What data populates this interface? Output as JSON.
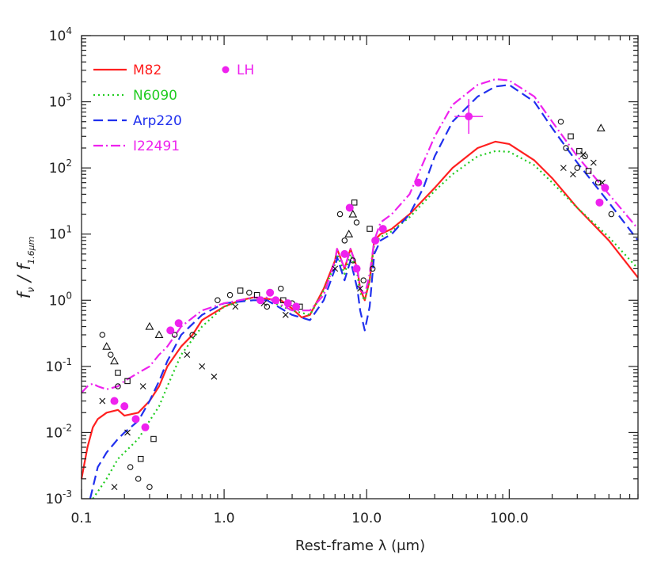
{
  "chart_data": {
    "type": "line",
    "title": "",
    "xlabel": "Rest-frame λ (μm)",
    "ylabel": "f_ν / f_1.6μm",
    "xscale": "log",
    "yscale": "log",
    "xlim": [
      0.1,
      800
    ],
    "ylim": [
      0.001,
      10000
    ],
    "x_ticks": [
      {
        "value": 0.1,
        "label": "0.1"
      },
      {
        "value": 1.0,
        "label": "1.0"
      },
      {
        "value": 10.0,
        "label": "10.0"
      },
      {
        "value": 100.0,
        "label": "100.0"
      }
    ],
    "y_ticks": [
      {
        "value": 0.001,
        "base": "10",
        "exp": "-3"
      },
      {
        "value": 0.01,
        "base": "10",
        "exp": "-2"
      },
      {
        "value": 0.1,
        "base": "10",
        "exp": "-1"
      },
      {
        "value": 1,
        "base": "10",
        "exp": "0"
      },
      {
        "value": 10,
        "base": "10",
        "exp": "1"
      },
      {
        "value": 100,
        "base": "10",
        "exp": "2"
      },
      {
        "value": 1000,
        "base": "10",
        "exp": "3"
      },
      {
        "value": 10000,
        "base": "10",
        "exp": "4"
      }
    ],
    "series": [
      {
        "name": "M82",
        "color": "#ff2020",
        "dash": "solid",
        "x": [
          0.1,
          0.11,
          0.12,
          0.13,
          0.15,
          0.18,
          0.2,
          0.25,
          0.3,
          0.35,
          0.4,
          0.5,
          0.6,
          0.7,
          1.0,
          1.3,
          1.6,
          2.0,
          2.5,
          3.0,
          3.5,
          4.0,
          5.0,
          6.0,
          6.2,
          7.0,
          7.7,
          8.6,
          9.0,
          9.7,
          10.5,
          11.3,
          12.5,
          15.0,
          20.0,
          30.0,
          40.0,
          60.0,
          80.0,
          100.0,
          150.0,
          200.0,
          300.0,
          500.0,
          800.0
        ],
        "y": [
          0.002,
          0.006,
          0.012,
          0.016,
          0.02,
          0.022,
          0.018,
          0.02,
          0.03,
          0.05,
          0.1,
          0.2,
          0.3,
          0.5,
          0.8,
          1.0,
          1.1,
          1.05,
          1.0,
          0.75,
          0.55,
          0.6,
          1.5,
          4.0,
          6.0,
          3.0,
          6.0,
          3.0,
          1.5,
          1.0,
          2.0,
          8.0,
          10.0,
          12.0,
          20.0,
          50.0,
          100.0,
          200.0,
          250.0,
          230.0,
          130.0,
          70.0,
          25.0,
          8.0,
          2.2
        ]
      },
      {
        "name": "N6090",
        "color": "#22cc22",
        "dash": "dotted",
        "x": [
          0.12,
          0.15,
          0.18,
          0.2,
          0.25,
          0.3,
          0.35,
          0.4,
          0.5,
          0.7,
          1.0,
          1.6,
          2.0,
          3.0,
          4.0,
          5.0,
          6.0,
          6.2,
          7.0,
          7.7,
          8.6,
          9.0,
          9.7,
          10.5,
          11.3,
          12.5,
          15.0,
          20.0,
          30.0,
          40.0,
          60.0,
          80.0,
          100.0,
          150.0,
          200.0,
          300.0,
          500.0,
          800.0
        ],
        "y": [
          0.001,
          0.002,
          0.004,
          0.005,
          0.008,
          0.015,
          0.025,
          0.05,
          0.15,
          0.4,
          0.8,
          1.1,
          1.0,
          0.7,
          0.6,
          1.4,
          3.5,
          5.0,
          2.5,
          5.0,
          2.5,
          1.3,
          1.0,
          2.0,
          7.0,
          9.0,
          11.0,
          18.0,
          45.0,
          80.0,
          150.0,
          180.0,
          175.0,
          110.0,
          60.0,
          25.0,
          9.0,
          3.0
        ]
      },
      {
        "name": "Arp220",
        "color": "#2030ee",
        "dash": "dashed",
        "x": [
          0.115,
          0.13,
          0.15,
          0.18,
          0.2,
          0.25,
          0.3,
          0.35,
          0.4,
          0.5,
          0.7,
          1.0,
          1.6,
          2.0,
          3.0,
          4.0,
          5.0,
          6.0,
          6.2,
          7.0,
          7.7,
          8.6,
          9.0,
          9.7,
          10.5,
          11.3,
          12.5,
          15.0,
          20.0,
          25.0,
          30.0,
          40.0,
          60.0,
          80.0,
          100.0,
          150.0,
          200.0,
          300.0,
          500.0,
          800.0
        ],
        "y": [
          0.001,
          0.003,
          0.005,
          0.008,
          0.01,
          0.015,
          0.03,
          0.06,
          0.12,
          0.3,
          0.6,
          0.9,
          1.0,
          1.0,
          0.6,
          0.5,
          1.0,
          3.0,
          4.5,
          2.0,
          4.0,
          1.5,
          0.7,
          0.35,
          0.8,
          5.0,
          8.0,
          10.0,
          20.0,
          50.0,
          150.0,
          500.0,
          1200.0,
          1700.0,
          1800.0,
          1000.0,
          400.0,
          120.0,
          30.0,
          8.0
        ]
      },
      {
        "name": "I22491",
        "color": "#ee22ee",
        "dash": "dashdot",
        "x": [
          0.1,
          0.11,
          0.12,
          0.13,
          0.15,
          0.18,
          0.2,
          0.25,
          0.3,
          0.35,
          0.4,
          0.5,
          0.7,
          1.0,
          1.6,
          2.0,
          3.0,
          4.0,
          5.0,
          6.0,
          6.2,
          7.0,
          7.7,
          8.6,
          9.0,
          9.7,
          10.5,
          11.3,
          12.5,
          15.0,
          20.0,
          30.0,
          40.0,
          60.0,
          80.0,
          100.0,
          150.0,
          200.0,
          300.0,
          500.0,
          800.0
        ],
        "y": [
          0.04,
          0.05,
          0.055,
          0.05,
          0.045,
          0.05,
          0.06,
          0.08,
          0.1,
          0.15,
          0.2,
          0.4,
          0.7,
          0.9,
          1.1,
          1.1,
          0.7,
          0.7,
          1.2,
          4.0,
          6.0,
          3.0,
          6.0,
          3.0,
          1.5,
          1.2,
          2.5,
          8.0,
          15.0,
          20.0,
          40.0,
          300.0,
          900.0,
          1800.0,
          2200.0,
          2100.0,
          1200.0,
          500.0,
          150.0,
          40.0,
          12.0
        ]
      }
    ],
    "lh_points": {
      "name": "LH",
      "color": "#ee22ee",
      "x": [
        0.17,
        0.2,
        0.24,
        0.28,
        0.42,
        0.48,
        1.8,
        2.1,
        2.3,
        2.8,
        3.2,
        7.0,
        7.6,
        8.5,
        11.5,
        13.0,
        23.0,
        52.0,
        430.0,
        470.0
      ],
      "y": [
        0.03,
        0.025,
        0.016,
        0.012,
        0.35,
        0.45,
        1.0,
        1.3,
        1.0,
        0.9,
        0.8,
        5.0,
        25.0,
        3.0,
        8.0,
        12.0,
        60.0,
        600.0,
        30.0,
        50.0
      ]
    },
    "scatter_points": {
      "circles": {
        "x": [
          0.14,
          0.16,
          0.18,
          0.22,
          0.25,
          0.3,
          0.45,
          0.6,
          0.9,
          1.1,
          1.5,
          2.0,
          2.5,
          3.0,
          6.5,
          7.0,
          8.0,
          8.5,
          9.5,
          11.0,
          230.0,
          250.0,
          300.0,
          340.0,
          420.0,
          520.0
        ],
        "y": [
          0.3,
          0.15,
          0.05,
          0.003,
          0.002,
          0.0015,
          0.3,
          0.3,
          1.0,
          1.2,
          1.3,
          0.8,
          1.5,
          0.9,
          20.0,
          8.0,
          4.0,
          15.0,
          2.0,
          3.0,
          500.0,
          200.0,
          100.0,
          150.0,
          60.0,
          20.0
        ]
      },
      "triangles": {
        "x": [
          0.15,
          0.17,
          0.3,
          0.35,
          7.5,
          8.0,
          440.0
        ],
        "y": [
          0.2,
          0.12,
          0.4,
          0.3,
          10.0,
          20.0,
          400.0
        ]
      },
      "squares": {
        "x": [
          0.18,
          0.21,
          0.26,
          0.32,
          1.3,
          1.7,
          2.6,
          3.4,
          8.2,
          10.5,
          270.0,
          310.0,
          360.0
        ],
        "y": [
          0.08,
          0.06,
          0.004,
          0.008,
          1.4,
          1.2,
          1.0,
          0.8,
          30.0,
          12.0,
          300.0,
          180.0,
          90.0
        ]
      },
      "crosses": {
        "x": [
          0.14,
          0.17,
          0.21,
          0.27,
          0.55,
          0.7,
          0.85,
          1.2,
          1.9,
          2.7,
          6.0,
          9.0,
          240.0,
          280.0,
          330.0,
          390.0,
          450.0
        ],
        "y": [
          0.03,
          0.0015,
          0.01,
          0.05,
          0.15,
          0.1,
          0.07,
          0.8,
          0.9,
          0.6,
          3.0,
          1.5,
          100.0,
          80.0,
          160.0,
          120.0,
          60.0
        ]
      }
    },
    "legend": [
      {
        "label": "M82",
        "color": "#ff2020",
        "dash": "solid"
      },
      {
        "label": "N6090",
        "color": "#22cc22",
        "dash": "dotted"
      },
      {
        "label": "Arp220",
        "color": "#2030ee",
        "dash": "dashed"
      },
      {
        "label": "I22491",
        "color": "#ee22ee",
        "dash": "dashdot"
      },
      {
        "label": "LH",
        "color": "#ee22ee",
        "marker": "circle"
      }
    ],
    "legend_position": "top-left",
    "grid": false
  }
}
